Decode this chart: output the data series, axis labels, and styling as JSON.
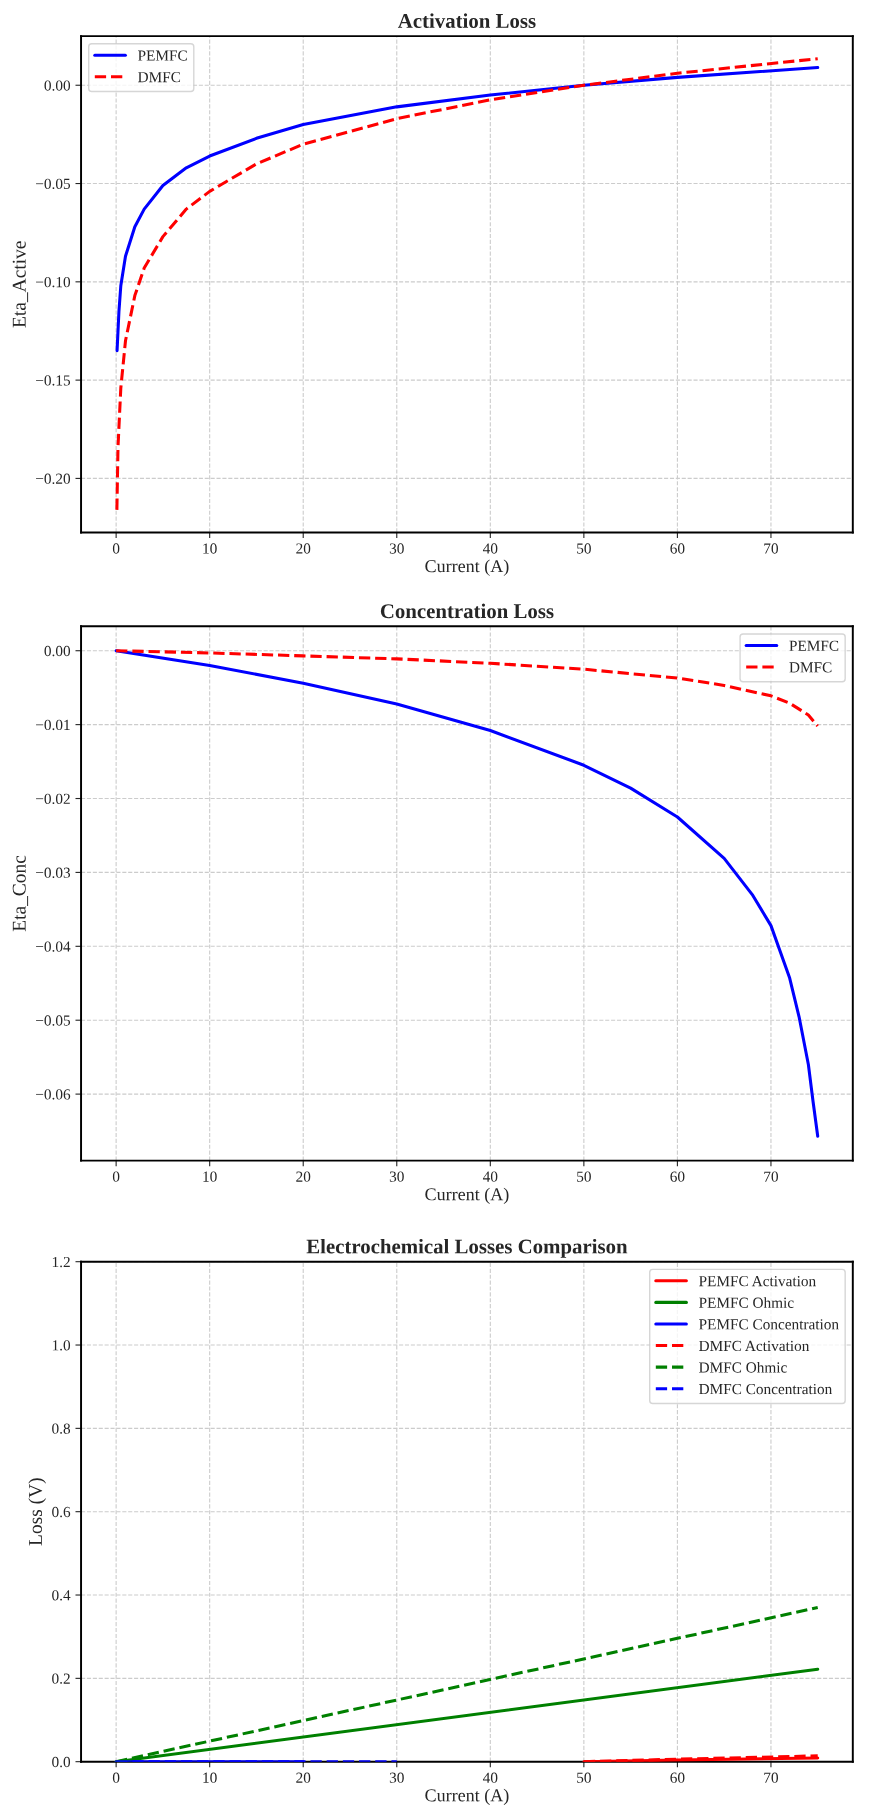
{
  "chart_data": [
    {
      "type": "line",
      "title": "Activation Loss",
      "xlabel": "Current (A)",
      "ylabel": "Eta_Active",
      "xlim": [
        -3.75,
        78.75
      ],
      "ylim": [
        -0.2275,
        0.025
      ],
      "xticks": [
        0,
        10,
        20,
        30,
        40,
        50,
        60,
        70
      ],
      "yticks": [
        {
          "value": -0.2,
          "label": "−0.20"
        },
        {
          "value": -0.15,
          "label": "−0.15"
        },
        {
          "value": -0.1,
          "label": "−0.10"
        },
        {
          "value": -0.05,
          "label": "−0.05"
        },
        {
          "value": 0,
          "label": "0.00"
        }
      ],
      "grid": true,
      "legend": "top left",
      "series": [
        {
          "name": "PEMFC",
          "color": "#0000ff",
          "line_style": "solid",
          "x": [
            0.1,
            0.3,
            0.5,
            1,
            2,
            3,
            5,
            7.5,
            10,
            15,
            20,
            30,
            40,
            50,
            60,
            75
          ],
          "values": [
            -0.135,
            -0.115,
            -0.102,
            -0.087,
            -0.072,
            -0.063,
            -0.051,
            -0.042,
            -0.036,
            -0.027,
            -0.02,
            -0.011,
            -0.005,
            0.0,
            0.004,
            0.009
          ]
        },
        {
          "name": "DMFC",
          "color": "#ff0000",
          "line_style": "dashed",
          "x": [
            0.08,
            0.2,
            0.5,
            1,
            2,
            3,
            5,
            7.5,
            10,
            15,
            20,
            30,
            40,
            50,
            60,
            75
          ],
          "values": [
            -0.216,
            -0.184,
            -0.154,
            -0.13,
            -0.107,
            -0.093,
            -0.077,
            -0.063,
            -0.054,
            -0.04,
            -0.03,
            -0.017,
            -0.0074,
            0.0,
            0.0061,
            0.0135
          ]
        }
      ]
    },
    {
      "type": "line",
      "title": "Concentration Loss",
      "xlabel": "Current (A)",
      "ylabel": "Eta_Conc",
      "xlim": [
        -3.75,
        78.75
      ],
      "ylim": [
        -0.069,
        0.0033
      ],
      "xticks": [
        0,
        10,
        20,
        30,
        40,
        50,
        60,
        70
      ],
      "yticks": [
        {
          "value": -0.06,
          "label": "−0.06"
        },
        {
          "value": -0.05,
          "label": "−0.05"
        },
        {
          "value": -0.04,
          "label": "−0.04"
        },
        {
          "value": -0.03,
          "label": "−0.03"
        },
        {
          "value": -0.02,
          "label": "−0.02"
        },
        {
          "value": -0.01,
          "label": "−0.01"
        },
        {
          "value": 0,
          "label": "0.00"
        }
      ],
      "grid": true,
      "legend": "top right",
      "series": [
        {
          "name": "PEMFC",
          "color": "#0000ff",
          "line_style": "solid",
          "x": [
            0,
            10,
            20,
            30,
            40,
            50,
            55,
            60,
            65,
            68,
            70,
            72,
            73,
            74,
            74.5,
            75
          ],
          "values": [
            0,
            -0.002,
            -0.0044,
            -0.0072,
            -0.0108,
            -0.0155,
            -0.0186,
            -0.0225,
            -0.0281,
            -0.033,
            -0.0372,
            -0.0443,
            -0.0495,
            -0.056,
            -0.061,
            -0.0657
          ]
        },
        {
          "name": "DMFC",
          "color": "#ff0000",
          "line_style": "dashed",
          "x": [
            0,
            10,
            20,
            30,
            40,
            50,
            60,
            65,
            70,
            72,
            74,
            75
          ],
          "values": [
            0,
            -0.0003,
            -0.0007,
            -0.0011,
            -0.0017,
            -0.0025,
            -0.0037,
            -0.0047,
            -0.0061,
            -0.0071,
            -0.0087,
            -0.0102
          ]
        }
      ]
    },
    {
      "type": "line",
      "title": "Electrochemical Losses Comparison",
      "xlabel": "Current (A)",
      "ylabel": "Loss (V)",
      "xlim": [
        -3.75,
        78.75
      ],
      "ylim": [
        0,
        1.2
      ],
      "xticks": [
        0,
        10,
        20,
        30,
        40,
        50,
        60,
        70
      ],
      "yticks": [
        {
          "value": 0,
          "label": "0.0"
        },
        {
          "value": 0.2,
          "label": "0.2"
        },
        {
          "value": 0.4,
          "label": "0.4"
        },
        {
          "value": 0.6,
          "label": "0.6"
        },
        {
          "value": 0.8,
          "label": "0.8"
        },
        {
          "value": 1.0,
          "label": "1.0"
        },
        {
          "value": 1.2,
          "label": "1.2"
        }
      ],
      "grid": true,
      "legend": "top right",
      "series": [
        {
          "name": "PEMFC Activation",
          "color": "#ff0000",
          "line_style": "solid",
          "x": [
            50,
            60,
            75
          ],
          "values": [
            0,
            0.004,
            0.009
          ]
        },
        {
          "name": "PEMFC Ohmic",
          "color": "#008000",
          "line_style": "solid",
          "x": [
            0,
            75
          ],
          "values": [
            0,
            0.222
          ]
        },
        {
          "name": "PEMFC Concentration",
          "color": "#0000ff",
          "line_style": "solid",
          "x": [
            0,
            10,
            20
          ],
          "values": [
            0,
            0,
            0
          ]
        },
        {
          "name": "DMFC Activation",
          "color": "#ff0000",
          "line_style": "dashed",
          "x": [
            50,
            60,
            75
          ],
          "values": [
            0,
            0.006,
            0.014
          ]
        },
        {
          "name": "DMFC Ohmic",
          "color": "#008000",
          "line_style": "dashed",
          "x": [
            0,
            75
          ],
          "values": [
            0,
            0.37
          ]
        },
        {
          "name": "DMFC Concentration",
          "color": "#0000ff",
          "line_style": "dashed",
          "x": [
            0,
            10,
            20,
            30
          ],
          "values": [
            0,
            0,
            0,
            0
          ]
        }
      ]
    }
  ]
}
